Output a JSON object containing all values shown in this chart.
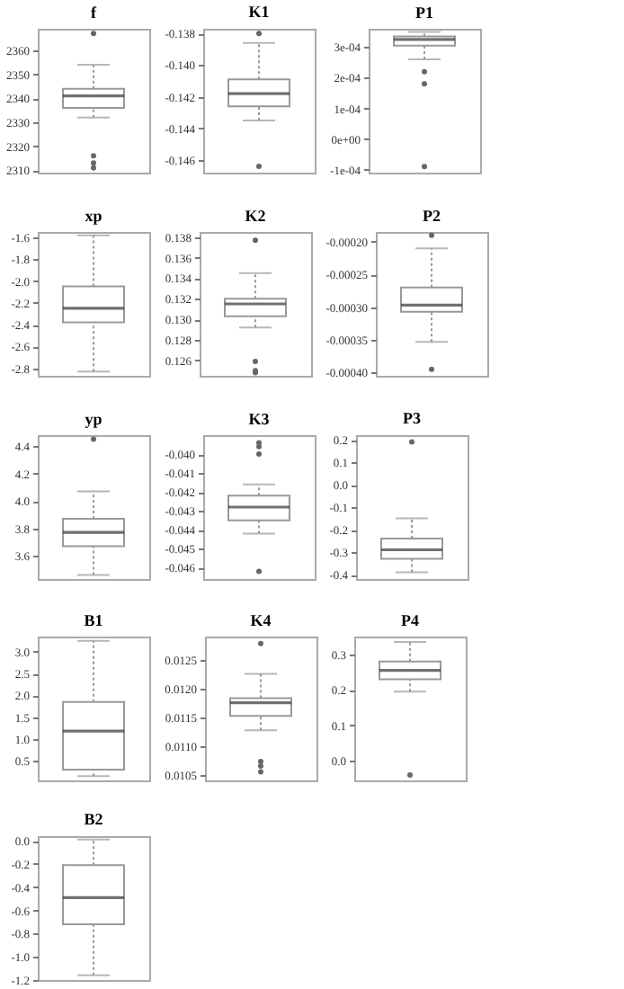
{
  "chart_data": [
    {
      "type": "box",
      "title": "f",
      "categories": [
        null
      ],
      "ylim": [
        2309,
        2369
      ],
      "yticks": [
        2310,
        2320,
        2330,
        2340,
        2350,
        2360
      ],
      "boxes": [
        {
          "low": 2332,
          "q1": 2336,
          "median": 2341,
          "q3": 2344,
          "high": 2354,
          "outliers": [
            2367,
            2316,
            2313,
            2311
          ]
        }
      ]
    },
    {
      "type": "box",
      "title": "K1",
      "categories": [
        null
      ],
      "ylim": [
        -0.1468,
        -0.1377
      ],
      "yticks": [
        {
          "value": -0.146,
          "label": "-0.146"
        },
        {
          "value": -0.144,
          "label": "-0.144"
        },
        {
          "value": -0.142,
          "label": "-0.142"
        },
        {
          "value": -0.14,
          "label": "-0.140"
        },
        {
          "value": -0.138,
          "label": "-0.138"
        }
      ],
      "boxes": [
        {
          "low": -0.1435,
          "q1": -0.1426,
          "median": -0.1418,
          "q3": -0.1409,
          "high": -0.1386,
          "outliers": [
            -0.138,
            -0.1464
          ]
        }
      ]
    },
    {
      "type": "box",
      "title": "P1",
      "categories": [
        null
      ],
      "ylim": [
        -0.00011,
        0.00036
      ],
      "yticks": [
        {
          "value": -0.0001,
          "label": "-1e-04"
        },
        {
          "value": 0,
          "label": "0e+00"
        },
        {
          "value": 0.0001,
          "label": "1e-04"
        },
        {
          "value": 0.0002,
          "label": "2e-04"
        },
        {
          "value": 0.0003,
          "label": "3e-04"
        }
      ],
      "boxes": [
        {
          "low": 0.00026,
          "q1": 0.000305,
          "median": 0.000325,
          "q3": 0.000335,
          "high": 0.00035,
          "outliers": [
            0.00022,
            0.00018,
            -9e-05
          ]
        }
      ]
    },
    {
      "type": "box",
      "title": "xp",
      "categories": [
        null
      ],
      "ylim": [
        -2.87,
        -1.55
      ],
      "yticks": [
        -2.8,
        -2.6,
        -2.4,
        -2.2,
        {
          "value": -2,
          "label": "-2.0"
        },
        -1.8,
        -1.6
      ],
      "boxes": [
        {
          "low": -2.83,
          "q1": -2.38,
          "median": -2.25,
          "q3": -2.05,
          "high": -1.58
        }
      ]
    },
    {
      "type": "box",
      "title": "K2",
      "categories": [
        null
      ],
      "ylim": [
        0.1245,
        0.1385
      ],
      "yticks": [
        0.126,
        0.128,
        {
          "value": 0.13,
          "label": "0.130"
        },
        0.132,
        0.134,
        0.136,
        0.138
      ],
      "boxes": [
        {
          "low": 0.1292,
          "q1": 0.1303,
          "median": 0.1315,
          "q3": 0.132,
          "high": 0.1345,
          "outliers": [
            0.1377,
            0.1259,
            0.125,
            0.1248
          ]
        }
      ]
    },
    {
      "type": "box",
      "title": "P2",
      "categories": [
        null
      ],
      "ylim": [
        -0.000405,
        -0.000185
      ],
      "yticks": [
        {
          "value": -0.0004,
          "label": "-0.00040"
        },
        {
          "value": -0.00035,
          "label": "-0.00035"
        },
        {
          "value": -0.0003,
          "label": "-0.00030"
        },
        {
          "value": -0.00025,
          "label": "-0.00025"
        },
        {
          "value": -0.0002,
          "label": "-0.00020"
        }
      ],
      "boxes": [
        {
          "low": -0.000353,
          "q1": -0.000307,
          "median": -0.000297,
          "q3": -0.00027,
          "high": -0.00021,
          "outliers": [
            -0.00019,
            -0.000395
          ]
        }
      ]
    },
    {
      "type": "box",
      "title": "yp",
      "categories": [
        null
      ],
      "ylim": [
        3.43,
        4.48
      ],
      "yticks": [
        3.6,
        3.8,
        {
          "value": 4,
          "label": "4.0"
        },
        4.2,
        4.4
      ],
      "boxes": [
        {
          "low": 3.46,
          "q1": 3.67,
          "median": 3.77,
          "q3": 3.87,
          "high": 4.07,
          "outliers": [
            4.45
          ]
        }
      ]
    },
    {
      "type": "box",
      "title": "K3",
      "categories": [
        null
      ],
      "ylim": [
        -0.0466,
        -0.039
      ],
      "yticks": [
        -0.046,
        -0.045,
        -0.044,
        -0.043,
        -0.042,
        -0.041,
        {
          "value": -0.04,
          "label": "-0.040"
        }
      ],
      "boxes": [
        {
          "low": -0.0442,
          "q1": -0.0435,
          "median": -0.0428,
          "q3": -0.0422,
          "high": -0.0416,
          "outliers": [
            -0.0394,
            -0.0396,
            -0.04,
            -0.0462
          ]
        }
      ]
    },
    {
      "type": "box",
      "title": "P3",
      "categories": [
        null
      ],
      "ylim": [
        -0.42,
        0.22
      ],
      "yticks": [
        -0.4,
        -0.3,
        -0.2,
        -0.1,
        {
          "value": 0,
          "label": "0.0"
        },
        0.1,
        0.2
      ],
      "boxes": [
        {
          "low": -0.39,
          "q1": -0.33,
          "median": -0.29,
          "q3": -0.24,
          "high": -0.15,
          "outliers": [
            0.19
          ]
        }
      ]
    },
    {
      "type": "box",
      "title": "B1",
      "categories": [
        null
      ],
      "ylim": [
        0.05,
        3.35
      ],
      "yticks": [
        0.5,
        {
          "value": 1,
          "label": "1.0"
        },
        1.5,
        {
          "value": 2,
          "label": "2.0"
        },
        2.5,
        {
          "value": 3,
          "label": "3.0"
        }
      ],
      "boxes": [
        {
          "low": 0.15,
          "q1": 0.3,
          "median": 1.18,
          "q3": 1.85,
          "high": 3.25
        }
      ]
    },
    {
      "type": "box",
      "title": "K4",
      "categories": [
        null
      ],
      "ylim": [
        0.0104,
        0.0129
      ],
      "yticks": [
        0.0105,
        {
          "value": 0.011,
          "label": "0.0110"
        },
        0.0115,
        {
          "value": 0.012,
          "label": "0.0120"
        },
        0.0125
      ],
      "boxes": [
        {
          "low": 0.01127,
          "q1": 0.01152,
          "median": 0.01175,
          "q3": 0.01183,
          "high": 0.01225,
          "outliers": [
            0.01278,
            0.01073,
            0.01065,
            0.01055
          ]
        }
      ]
    },
    {
      "type": "box",
      "title": "P4",
      "categories": [
        null
      ],
      "ylim": [
        -0.055,
        0.35
      ],
      "yticks": [
        {
          "value": 0,
          "label": "0.0"
        },
        0.1,
        0.2,
        0.3
      ],
      "boxes": [
        {
          "low": 0.195,
          "q1": 0.23,
          "median": 0.255,
          "q3": 0.28,
          "high": 0.335,
          "outliers": [
            -0.04
          ]
        }
      ]
    },
    {
      "type": "box",
      "title": "B2",
      "categories": [
        null
      ],
      "ylim": [
        -1.2,
        0.04
      ],
      "yticks": [
        -1.2,
        {
          "value": -1,
          "label": "-1.0"
        },
        -0.8,
        -0.6,
        -0.4,
        -0.2,
        {
          "value": 0,
          "label": "0.0"
        }
      ],
      "boxes": [
        {
          "low": -1.16,
          "q1": -0.72,
          "median": -0.49,
          "q3": -0.21,
          "high": 0.01
        }
      ]
    }
  ]
}
